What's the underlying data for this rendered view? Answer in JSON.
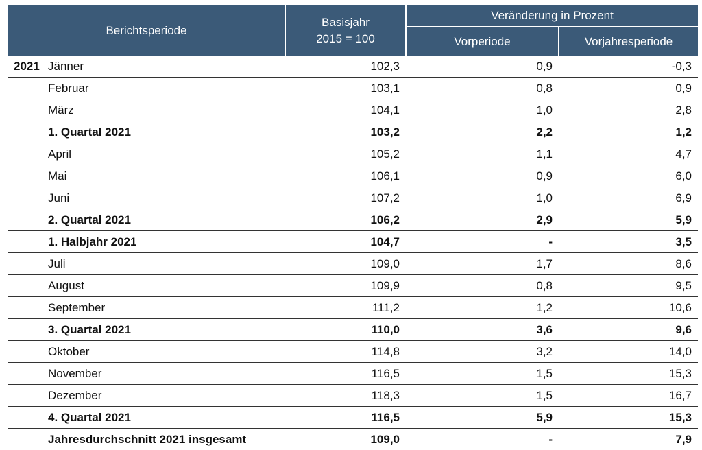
{
  "header": {
    "berichtsperiode": "Berichtsperiode",
    "basisjahr_line1": "Basisjahr",
    "basisjahr_line2": "2015 = 100",
    "veraenderung": "Veränderung in Prozent",
    "vorperiode": "Vorperiode",
    "vorjahresperiode": "Vorjahresperiode"
  },
  "rows": [
    {
      "year": "2021",
      "period": "Jänner",
      "index": "102,3",
      "vorperiode": "0,9",
      "vorjahr": "-0,3",
      "bold": false
    },
    {
      "year": "",
      "period": "Februar",
      "index": "103,1",
      "vorperiode": "0,8",
      "vorjahr": "0,9",
      "bold": false
    },
    {
      "year": "",
      "period": "März",
      "index": "104,1",
      "vorperiode": "1,0",
      "vorjahr": "2,8",
      "bold": false
    },
    {
      "year": "",
      "period": "1. Quartal 2021",
      "index": "103,2",
      "vorperiode": "2,2",
      "vorjahr": "1,2",
      "bold": true
    },
    {
      "year": "",
      "period": "April",
      "index": "105,2",
      "vorperiode": "1,1",
      "vorjahr": "4,7",
      "bold": false
    },
    {
      "year": "",
      "period": "Mai",
      "index": "106,1",
      "vorperiode": "0,9",
      "vorjahr": "6,0",
      "bold": false
    },
    {
      "year": "",
      "period": "Juni",
      "index": "107,2",
      "vorperiode": "1,0",
      "vorjahr": "6,9",
      "bold": false
    },
    {
      "year": "",
      "period": "2. Quartal 2021",
      "index": "106,2",
      "vorperiode": "2,9",
      "vorjahr": "5,9",
      "bold": true
    },
    {
      "year": "",
      "period": "1. Halbjahr 2021",
      "index": "104,7",
      "vorperiode": "-",
      "vorjahr": "3,5",
      "bold": true
    },
    {
      "year": "",
      "period": "Juli",
      "index": "109,0",
      "vorperiode": "1,7",
      "vorjahr": "8,6",
      "bold": false
    },
    {
      "year": "",
      "period": "August",
      "index": "109,9",
      "vorperiode": "0,8",
      "vorjahr": "9,5",
      "bold": false
    },
    {
      "year": "",
      "period": "September",
      "index": "111,2",
      "vorperiode": "1,2",
      "vorjahr": "10,6",
      "bold": false
    },
    {
      "year": "",
      "period": "3. Quartal 2021",
      "index": "110,0",
      "vorperiode": "3,6",
      "vorjahr": "9,6",
      "bold": true
    },
    {
      "year": "",
      "period": "Oktober",
      "index": "114,8",
      "vorperiode": "3,2",
      "vorjahr": "14,0",
      "bold": false
    },
    {
      "year": "",
      "period": "November",
      "index": "116,5",
      "vorperiode": "1,5",
      "vorjahr": "15,3",
      "bold": false
    },
    {
      "year": "",
      "period": "Dezember",
      "index": "118,3",
      "vorperiode": "1,5",
      "vorjahr": "16,7",
      "bold": false
    },
    {
      "year": "",
      "period": "4. Quartal 2021",
      "index": "116,5",
      "vorperiode": "5,9",
      "vorjahr": "15,3",
      "bold": true
    },
    {
      "year": "",
      "period": "Jahresdurchschnitt 2021 insgesamt",
      "index": "109,0",
      "vorperiode": "-",
      "vorjahr": "7,9",
      "bold": true
    }
  ],
  "colors": {
    "header_bg": "#3b5a78",
    "header_text": "#ffffff"
  }
}
